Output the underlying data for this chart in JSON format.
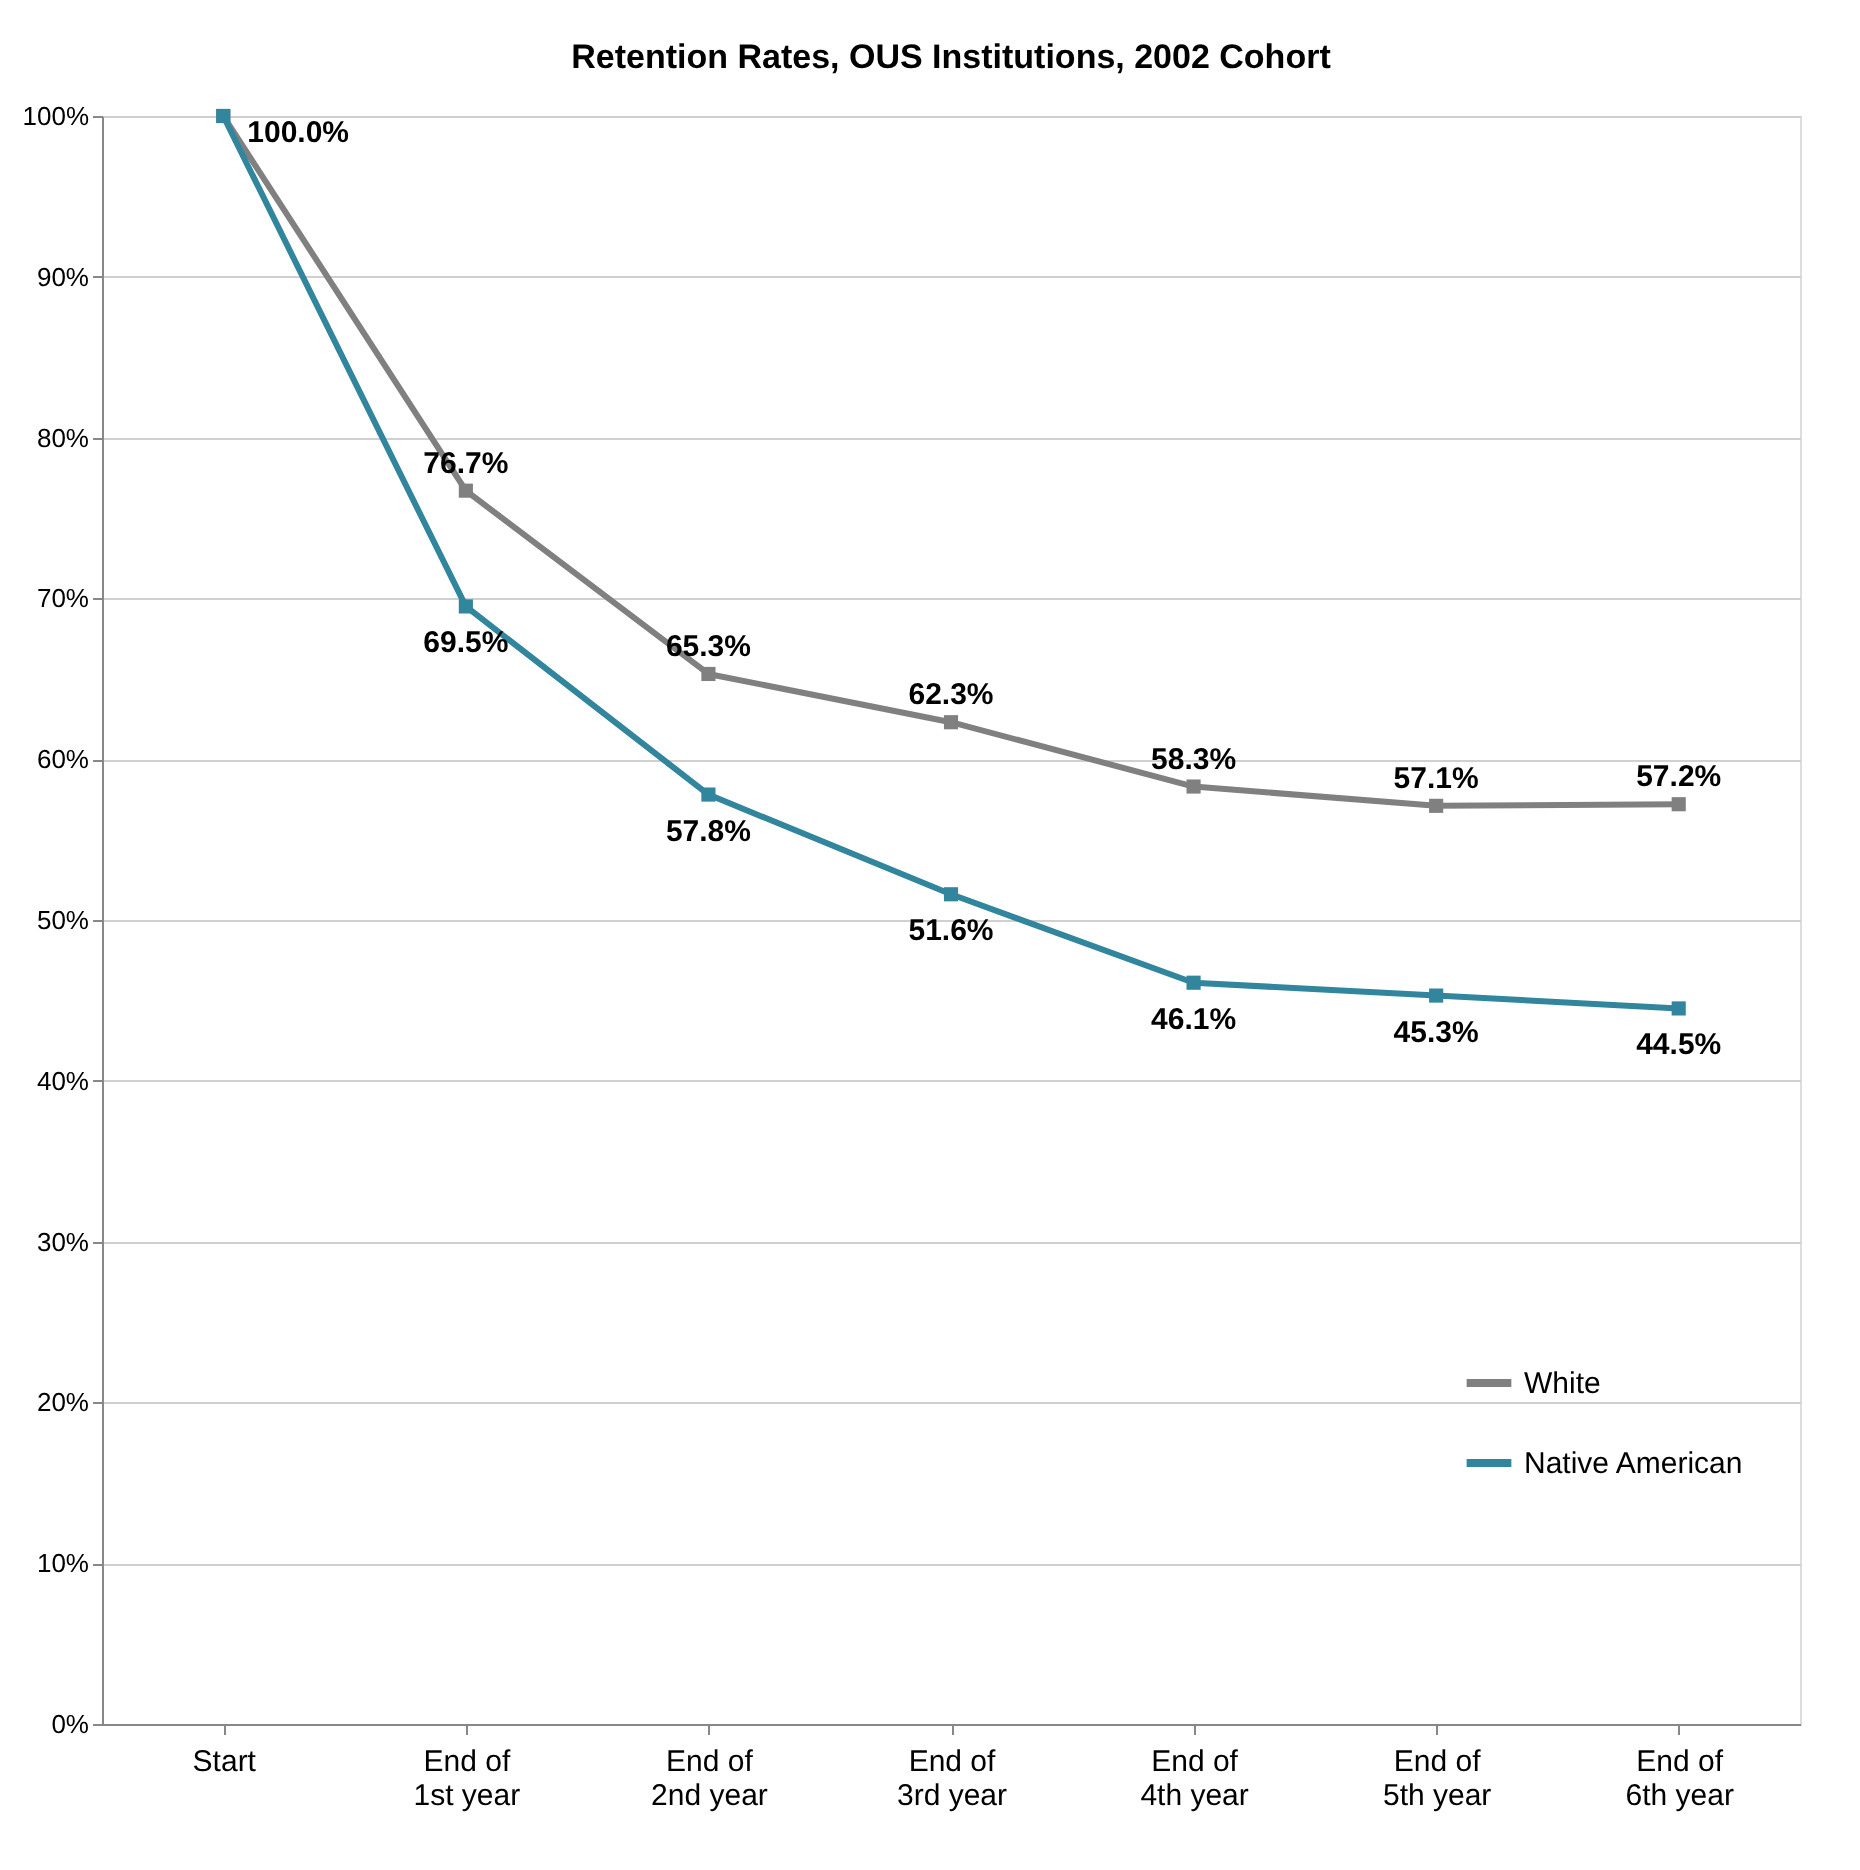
{
  "chart_data": {
    "type": "line",
    "title": "Retention Rates, OUS Institutions, 2002 Cohort",
    "categories": [
      "Start",
      "End of 1st year",
      "End of 2nd year",
      "End of 3rd year",
      "End of 4th year",
      "End of 5th year",
      "End of 6th year"
    ],
    "series": [
      {
        "name": "White",
        "color": "#808080",
        "values": [
          100,
          76.7,
          65.3,
          62.3,
          58.3,
          57.1,
          57.2
        ],
        "value_labels": [
          "100.0%",
          "76.7%",
          "65.3%",
          "62.3%",
          "58.3%",
          "57.1%",
          "57.2%"
        ]
      },
      {
        "name": "Native American",
        "color": "#31859c",
        "values": [
          100,
          69.5,
          57.8,
          51.6,
          46.1,
          45.3,
          44.5
        ],
        "value_labels": [
          null,
          "69.5%",
          "57.8%",
          "51.6%",
          "46.1%",
          "45.3%",
          "44.5%"
        ]
      }
    ],
    "ylim": [
      0,
      100
    ],
    "yticks": [
      {
        "value": 0,
        "label": "0%"
      },
      {
        "value": 10,
        "label": "10%"
      },
      {
        "value": 20,
        "label": "20%"
      },
      {
        "value": 30,
        "label": "30%"
      },
      {
        "value": 40,
        "label": "40%"
      },
      {
        "value": 50,
        "label": "50%"
      },
      {
        "value": 60,
        "label": "60%"
      },
      {
        "value": 70,
        "label": "70%"
      },
      {
        "value": 80,
        "label": "80%"
      },
      {
        "value": 90,
        "label": "90%"
      },
      {
        "value": 100,
        "label": "100%"
      }
    ],
    "grid": "y",
    "legend": "bottom right",
    "marker": "square",
    "line_style": "solid"
  }
}
